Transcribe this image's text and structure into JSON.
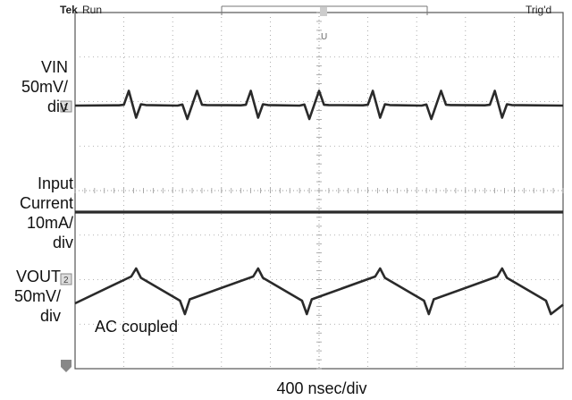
{
  "header": {
    "brand": "Tek",
    "mode": "Run",
    "status": "Trig'd"
  },
  "channels": {
    "vin": {
      "line1": "VIN",
      "line2": "50mV/",
      "line3": "div",
      "marker": "1"
    },
    "iin": {
      "line1": "Input",
      "line2": "Current",
      "line3": "10mA/",
      "line4": "div"
    },
    "vout": {
      "line1": "VOUT",
      "line2": "50mV/",
      "line3": "div",
      "marker": "2"
    }
  },
  "notes": {
    "ac_coupled": "AC coupled",
    "timebase": "400 nsec/div"
  },
  "colors": {
    "trace": "#2a2a2a",
    "grid": "#9a9a9a"
  },
  "chart_data": {
    "type": "line",
    "x_unit": "divisions (400 nsec/div)",
    "xlim": [
      0,
      10
    ],
    "series": [
      {
        "name": "VIN",
        "x": [
          0,
          0.9,
          1.0,
          1.1,
          1.25,
          1.35,
          1.45,
          2.1,
          2.2,
          2.3,
          2.5,
          2.6,
          2.7,
          3.4,
          3.5,
          3.6,
          3.75,
          3.85,
          3.95,
          4.6,
          4.7,
          4.8,
          5.0,
          5.1,
          5.2,
          5.9,
          6.0,
          6.1,
          6.25,
          6.35,
          6.45,
          7.1,
          7.2,
          7.3,
          7.5,
          7.6,
          7.7,
          8.4,
          8.5,
          8.6,
          8.75,
          8.85,
          8.95,
          10
        ],
        "y": [
          0,
          0.01,
          0.03,
          0.55,
          -0.45,
          0.05,
          0.02,
          0.0,
          0.04,
          -0.5,
          0.55,
          0.03,
          0.02,
          0.01,
          0.03,
          0.55,
          -0.45,
          0.05,
          0.02,
          0.0,
          0.04,
          -0.5,
          0.55,
          0.03,
          0.02,
          0.01,
          0.03,
          0.55,
          -0.45,
          0.05,
          0.02,
          0.0,
          0.04,
          -0.5,
          0.55,
          0.03,
          0.02,
          0.01,
          0.03,
          0.55,
          -0.45,
          0.05,
          0.02,
          0.0
        ]
      },
      {
        "name": "Input Current",
        "x": [
          0,
          10
        ],
        "y": [
          0,
          0
        ]
      },
      {
        "name": "VOUT",
        "x": [
          0,
          1.15,
          1.25,
          1.35,
          2.15,
          2.25,
          2.35,
          3.65,
          3.75,
          3.85,
          4.65,
          4.75,
          4.85,
          6.15,
          6.25,
          6.35,
          7.15,
          7.25,
          7.35,
          8.65,
          8.75,
          8.85,
          9.65,
          9.75,
          10
        ],
        "y": [
          -0.9,
          0.1,
          0.4,
          0.05,
          -0.8,
          -1.3,
          -0.75,
          0.1,
          0.4,
          0.05,
          -0.8,
          -1.3,
          -0.75,
          0.1,
          0.4,
          0.05,
          -0.8,
          -1.3,
          -0.75,
          0.1,
          0.4,
          0.05,
          -0.8,
          -1.3,
          -0.95
        ]
      }
    ]
  }
}
